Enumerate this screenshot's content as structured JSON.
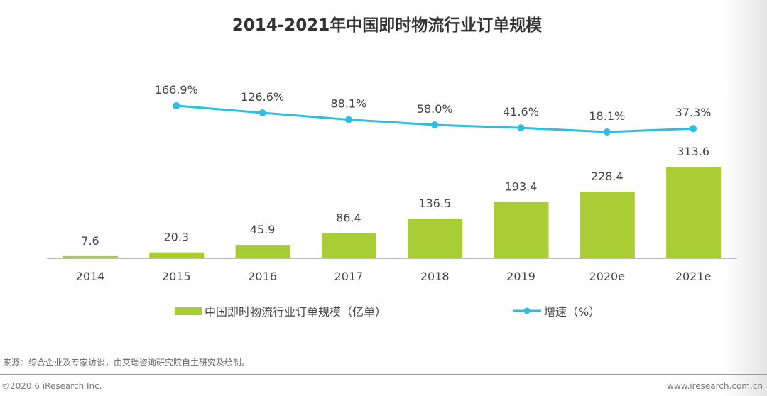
{
  "chart_data": {
    "type": "bar+line",
    "title": "2014-2021年中国即时物流行业订单规模",
    "categories": [
      "2014",
      "2015",
      "2016",
      "2017",
      "2018",
      "2019",
      "2020e",
      "2021e"
    ],
    "series": [
      {
        "name": "中国即时物流行业订单规模（亿单）",
        "type": "bar",
        "values": [
          7.6,
          20.3,
          45.9,
          86.4,
          136.5,
          193.4,
          228.4,
          313.6
        ],
        "labels": [
          "7.6",
          "20.3",
          "45.9",
          "86.4",
          "136.5",
          "193.4",
          "228.4",
          "313.6"
        ]
      },
      {
        "name": "增速（%）",
        "type": "line",
        "values": [
          null,
          166.9,
          126.6,
          88.1,
          58.0,
          41.6,
          18.1,
          37.3
        ],
        "labels": [
          "",
          "166.9%",
          "126.6%",
          "88.1%",
          "58.0%",
          "41.6%",
          "18.1%",
          "37.3%"
        ]
      }
    ],
    "legend": "bottom",
    "grid": false,
    "colors": {
      "bar": "#a8cd35",
      "line": "#2ebde0"
    }
  },
  "footer": {
    "source": "来源：综合企业及专家访谈，由艾瑞咨询研究院自主研究及绘制。",
    "copyright": "©2020.6 iResearch Inc.",
    "website": "www.iresearch.com.cn"
  }
}
